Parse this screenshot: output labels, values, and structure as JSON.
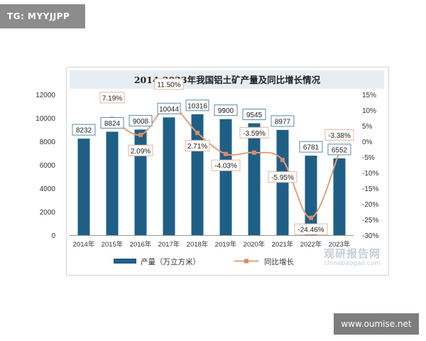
{
  "tag": "TG: MYYJJPP",
  "footer_url": "www.oumise.net",
  "watermark": {
    "name": "观研报告网",
    "domain": "chinabaogao.com"
  },
  "colors": {
    "bar": "#1f5f86",
    "line": "#e3a07a",
    "marker": "#d98a63",
    "label_border": "#5d8aa8",
    "pct_border": "#e8b49a"
  },
  "chart_data": {
    "type": "bar",
    "title": "2014-2023年我国铝土矿产量及同比增长情况",
    "categories": [
      "2014年",
      "2015年",
      "2016年",
      "2017年",
      "2018年",
      "2019年",
      "2020年",
      "2021年",
      "2022年",
      "2023年"
    ],
    "series": [
      {
        "name": "产量（万立方米）",
        "type": "bar",
        "axis": "left",
        "values": [
          8232,
          8824,
          9008,
          10044,
          10316,
          9900,
          9545,
          8977,
          6781,
          6552
        ]
      },
      {
        "name": "同比增长",
        "type": "line",
        "axis": "right",
        "values": [
          null,
          7.19,
          2.09,
          11.5,
          2.71,
          -4.03,
          -3.59,
          -5.95,
          -24.46,
          -3.38
        ],
        "labels": [
          "",
          "7.19%",
          "2.09%",
          "11.50%",
          "2.71%",
          "-4.03%",
          "-3.59%",
          "-5.95%",
          "-24.46%",
          "-3.38%"
        ]
      }
    ],
    "ylim_left": [
      0,
      12000
    ],
    "yticks_left": [
      0,
      2000,
      4000,
      6000,
      8000,
      10000,
      12000
    ],
    "ylim_right": [
      -30,
      15
    ],
    "yticks_right": [
      15,
      10,
      5,
      0,
      -5,
      -10,
      -15,
      -20,
      -25,
      -30
    ],
    "yticks_right_labels": [
      "15%",
      "10%",
      "5%",
      "0%",
      "-5%",
      "-10%",
      "-15%",
      "-20%",
      "-25%",
      "-30%"
    ],
    "legend_position": "bottom",
    "grid": false
  }
}
